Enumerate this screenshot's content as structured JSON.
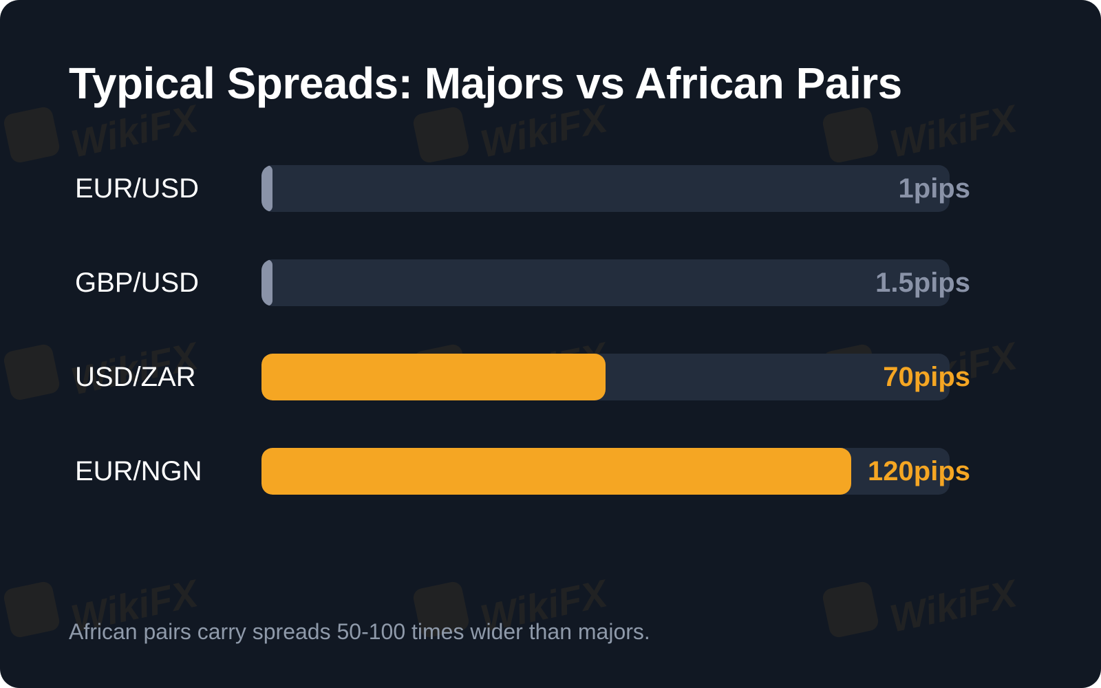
{
  "colors": {
    "background": "#111823",
    "track": "#232d3d",
    "major_bar": "#8a93a8",
    "african_bar": "#f5a623",
    "major_value_text": "#8a93a8",
    "african_value_text": "#f5a623",
    "title_text": "#ffffff",
    "footnote_text": "#8f9aaa"
  },
  "watermark": {
    "text": "WikiFX",
    "icon": "eagle-logo-icon"
  },
  "chart_data": {
    "type": "bar",
    "orientation": "horizontal",
    "title": "Typical Spreads: Majors vs African Pairs",
    "categories": [
      "EUR/USD",
      "GBP/USD",
      "USD/ZAR",
      "EUR/NGN"
    ],
    "values": [
      1,
      1.5,
      70,
      120
    ],
    "unit": "pips",
    "value_labels": [
      "1pips",
      "1.5pips",
      "70pips",
      "120pips"
    ],
    "groups": [
      "major",
      "major",
      "african",
      "african"
    ],
    "xlim": [
      0,
      140
    ],
    "grid": false,
    "footnote": "African pairs carry spreads 50-100 times wider than majors."
  }
}
